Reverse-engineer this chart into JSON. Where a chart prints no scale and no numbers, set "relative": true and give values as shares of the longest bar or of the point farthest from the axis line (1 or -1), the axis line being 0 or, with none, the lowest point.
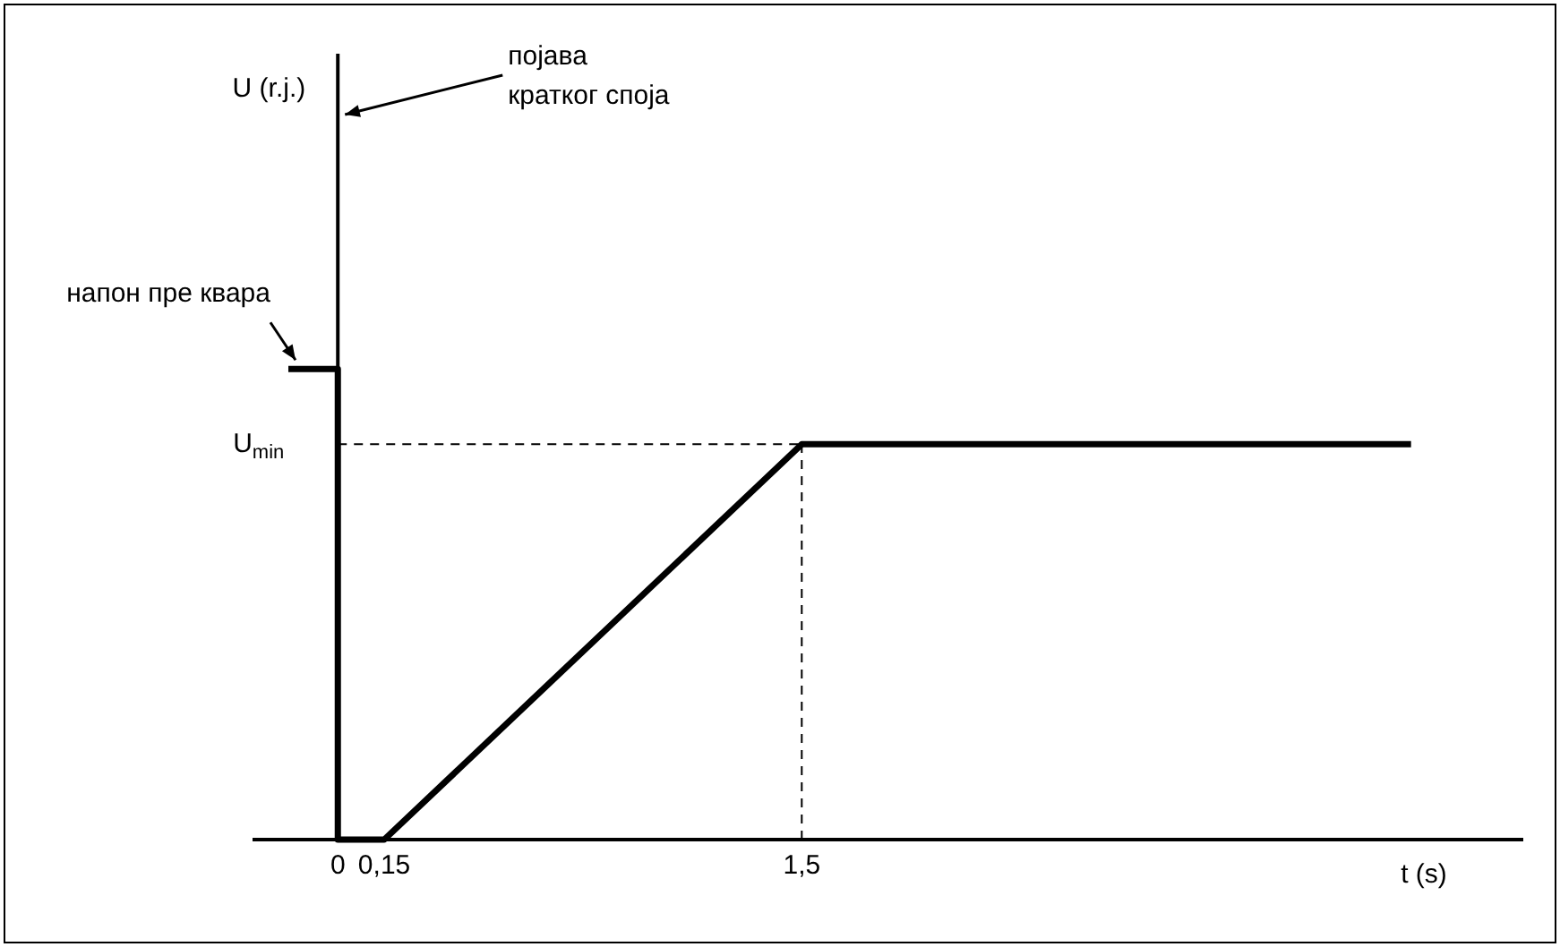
{
  "chart_data": {
    "type": "line",
    "relative": true,
    "xlabel": "t (s)",
    "xlim": [
      -0.27,
      3.83
    ],
    "xticks": [
      0,
      {
        "value": 0.15,
        "label": "0,15"
      },
      {
        "value": 1.5,
        "label": "1,5"
      }
    ],
    "series": [
      {
        "color": "#000000",
        "x": [
          -0.16,
          0,
          0,
          0.15,
          1.5,
          3.47
        ],
        "values": [
          1,
          1,
          0,
          0,
          0.84,
          0.84
        ]
      }
    ],
    "ref_lines": [
      {
        "axis": "x",
        "value": 0,
        "label": "појава кратког споја",
        "line_style": "solid",
        "color": "#000000"
      },
      {
        "axis": "y",
        "value": 0.84,
        "label": "U$_{min}$",
        "line_style": "dashed",
        "color": "#000000"
      },
      {
        "axis": "x",
        "value": 1.5,
        "label": null,
        "line_style": "dashed",
        "color": "#000000"
      }
    ],
    "annotations": [
      "U (r.j.)",
      {
        "text": "напон пре квара",
        "x": -0.16,
        "y": 1
      }
    ],
    "grid": false,
    "legend": false,
    "marker": "none",
    "line_style": "solid"
  }
}
